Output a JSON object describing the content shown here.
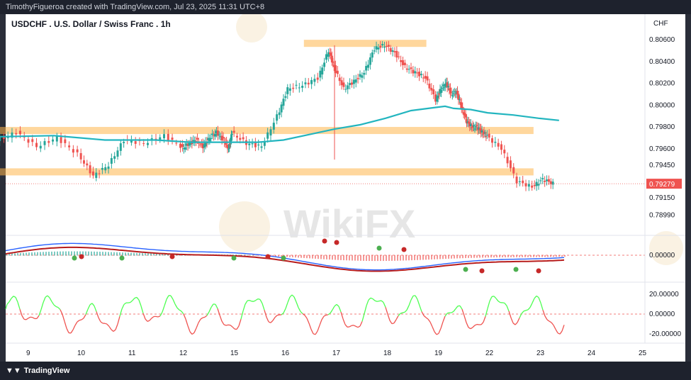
{
  "header": {
    "text": "TimothyFigueroa created with TradingView.com, Jul 23, 2025 11:31 UTC+8"
  },
  "footer": {
    "logo_text": "TradingView"
  },
  "watermark": {
    "text": "WikiFX"
  },
  "colors": {
    "up": "#26a69a",
    "down": "#ef5350",
    "zone": "#ffb74d",
    "ma": "#22b5bf",
    "macd": "#2962ff",
    "signal": "#b71c1c",
    "osc_up": "#4cff50",
    "osc_down": "#ef5350",
    "cross_up": "#4caf50",
    "cross_down": "#c62828",
    "price_tag": "#ef5350"
  },
  "chart_data": {
    "type": "candlestick",
    "symbol": "USDCHF",
    "title": "USDCHF . U.S. Dollar / Swiss Franc . 1h",
    "currency_label": "CHF",
    "last_price": "0.79279",
    "main_pane": {
      "ylim": [
        0.7885,
        0.8064
      ],
      "price_ticks": [
        "0.80600",
        "0.80400",
        "0.80200",
        "0.80000",
        "0.79800",
        "0.79600",
        "0.79450",
        "0.79150",
        "0.78990"
      ],
      "price_tick_values": [
        0.806,
        0.804,
        0.802,
        0.8,
        0.798,
        0.796,
        0.7945,
        0.7915,
        0.7899
      ],
      "zones": [
        {
          "x_from": 16.4,
          "x_to": 18.8,
          "y_from": 0.8058,
          "y_to": 0.806
        },
        {
          "x_from": 8.4,
          "x_to": 22.9,
          "y_from": 0.7976,
          "y_to": 0.798
        },
        {
          "x_from": 8.4,
          "x_to": 22.9,
          "y_from": 0.7938,
          "y_to": 0.7942
        }
      ],
      "ma_points": [
        [
          8.4,
          0.7971
        ],
        [
          9.5,
          0.7972
        ],
        [
          10.5,
          0.7968
        ],
        [
          11.5,
          0.7968
        ],
        [
          12.5,
          0.7966
        ],
        [
          13.5,
          0.7966
        ],
        [
          14.5,
          0.7966
        ],
        [
          15.5,
          0.7966
        ],
        [
          16.0,
          0.7968
        ],
        [
          16.5,
          0.7973
        ],
        [
          17.0,
          0.7978
        ],
        [
          17.5,
          0.7982
        ],
        [
          18.0,
          0.7988
        ],
        [
          18.5,
          0.7995
        ],
        [
          19.0,
          0.7998
        ],
        [
          19.5,
          0.7999
        ],
        [
          20.0,
          0.7997
        ],
        [
          21.0,
          0.7996
        ],
        [
          22.0,
          0.7993
        ],
        [
          22.5,
          0.7991
        ],
        [
          23.0,
          0.7988
        ],
        [
          23.4,
          0.7986
        ]
      ],
      "price_points": [
        [
          8.4,
          0.7967
        ],
        [
          8.8,
          0.7975
        ],
        [
          9.2,
          0.7962
        ],
        [
          9.6,
          0.797
        ],
        [
          10.0,
          0.7955
        ],
        [
          10.3,
          0.7935
        ],
        [
          10.6,
          0.7945
        ],
        [
          10.9,
          0.7968
        ],
        [
          11.3,
          0.7965
        ],
        [
          11.7,
          0.7972
        ],
        [
          12.1,
          0.796
        ],
        [
          12.5,
          0.7965
        ],
        [
          12.9,
          0.7968
        ],
        [
          13.3,
          0.7962
        ],
        [
          13.7,
          0.797
        ],
        [
          14.1,
          0.7975
        ],
        [
          14.5,
          0.7968
        ],
        [
          14.8,
          0.796
        ],
        [
          15.0,
          0.7975
        ],
        [
          15.3,
          0.7965
        ],
        [
          15.6,
          0.7962
        ],
        [
          15.9,
          0.799
        ],
        [
          16.1,
          0.8015
        ],
        [
          16.4,
          0.8018
        ],
        [
          16.7,
          0.8025
        ],
        [
          16.9,
          0.805
        ],
        [
          17.0,
          0.8035
        ],
        [
          17.2,
          0.8015
        ],
        [
          17.4,
          0.8022
        ],
        [
          17.6,
          0.803
        ],
        [
          17.8,
          0.8052
        ],
        [
          18.0,
          0.8055
        ],
        [
          18.2,
          0.8048
        ],
        [
          18.4,
          0.8035
        ],
        [
          18.6,
          0.803
        ],
        [
          18.8,
          0.8025
        ],
        [
          19.0,
          0.8005
        ],
        [
          19.3,
          0.8015
        ],
        [
          19.6,
          0.802
        ],
        [
          19.9,
          0.801
        ],
        [
          20.2,
          0.8012
        ],
        [
          20.5,
          0.7998
        ],
        [
          20.8,
          0.7985
        ],
        [
          21.1,
          0.798
        ],
        [
          21.4,
          0.798
        ],
        [
          21.7,
          0.7975
        ],
        [
          22.0,
          0.7972
        ],
        [
          22.3,
          0.796
        ],
        [
          22.6,
          0.793
        ],
        [
          22.9,
          0.7925
        ],
        [
          23.1,
          0.7932
        ],
        [
          23.3,
          0.7928
        ]
      ]
    },
    "macd_pane": {
      "ticks": [
        "0.00000"
      ],
      "tick_values": [
        0
      ],
      "ylim": [
        -1,
        1
      ]
    },
    "osc_pane": {
      "ticks": [
        "20.00000",
        "0.00000",
        "-20.00000"
      ],
      "tick_values": [
        20,
        0,
        -20
      ],
      "ylim": [
        -25,
        25
      ]
    },
    "x_axis": {
      "labels": [
        "9",
        "10",
        "11",
        "12",
        "15",
        "16",
        "17",
        "18",
        "19",
        "22",
        "23",
        "24",
        "25"
      ],
      "positions": [
        9,
        10,
        11,
        12,
        13,
        14,
        15,
        16,
        17,
        18,
        19,
        20,
        21
      ]
    }
  }
}
